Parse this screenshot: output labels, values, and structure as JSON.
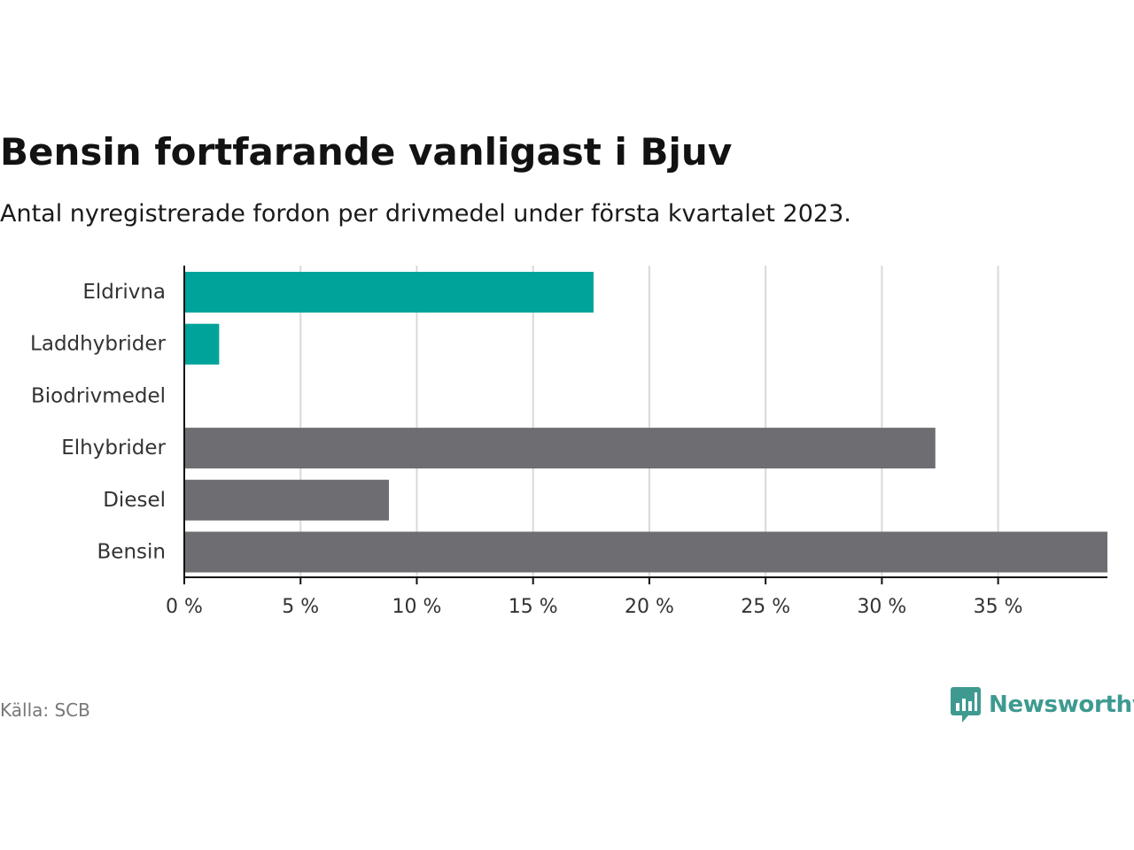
{
  "header": {
    "title": "Bensin fortfarande vanligast i Bjuv",
    "subtitle": "Antal nyregistrerade fordon per drivmedel under första kvartalet 2023."
  },
  "footer": {
    "source": "Källa: SCB",
    "brand": "Newsworthy"
  },
  "colors": {
    "highlight": "#00a39a",
    "default": "#6e6d72",
    "grid": "#d9d9d9",
    "axis": "#111111",
    "brand": "#3e9a91"
  },
  "chart_data": {
    "type": "bar",
    "orientation": "horizontal",
    "categories": [
      "Eldrivna",
      "Laddhybrider",
      "Biodrivmedel",
      "Elhybrider",
      "Diesel",
      "Bensin"
    ],
    "values": [
      17.6,
      1.5,
      0,
      32.3,
      8.8,
      39.7
    ],
    "highlighted": [
      true,
      true,
      false,
      false,
      false,
      false
    ],
    "xlim": [
      0,
      39.7
    ],
    "ticks": [
      0,
      5,
      10,
      15,
      20,
      25,
      30,
      35
    ],
    "tick_labels": [
      "0 %",
      "5 %",
      "10 %",
      "15 %",
      "20 %",
      "25 %",
      "30 %",
      "35 %"
    ],
    "grid": true,
    "legend": "none"
  }
}
